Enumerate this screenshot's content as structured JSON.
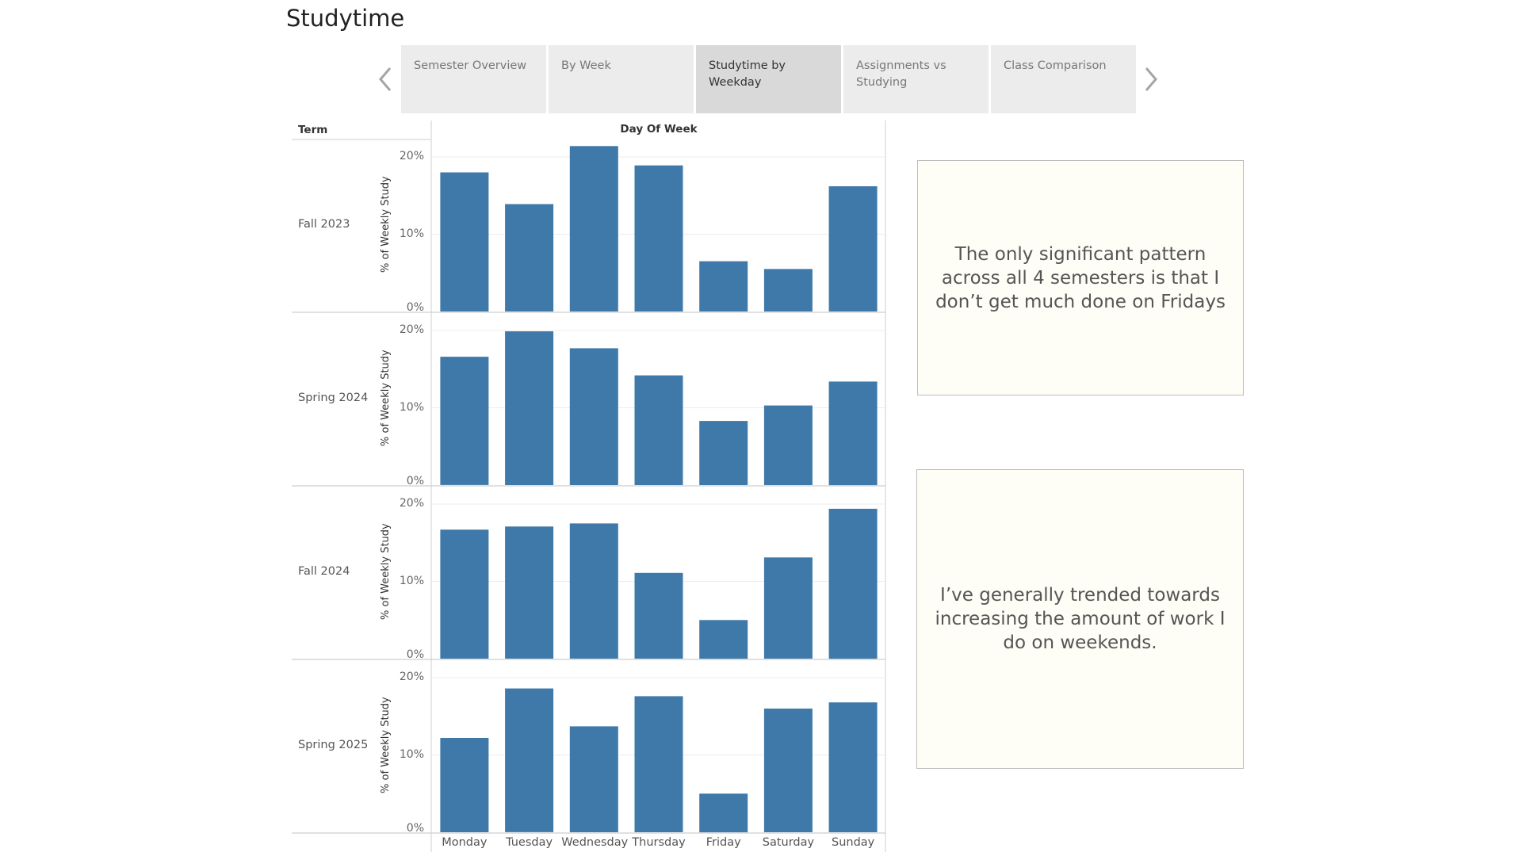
{
  "page": {
    "title": "Studytime"
  },
  "tabs": [
    {
      "label": "Semester Overview",
      "active": false
    },
    {
      "label": "By Week",
      "active": false
    },
    {
      "label": "Studytime by Weekday",
      "active": true
    },
    {
      "label": "Assignments vs Studying",
      "active": false
    },
    {
      "label": "Class Comparison",
      "active": false
    }
  ],
  "nav": {
    "prev_icon": "chevron-left-icon",
    "next_icon": "chevron-right-icon"
  },
  "chart_headers": {
    "row_header": "Term",
    "column_header": "Day Of Week"
  },
  "colors": {
    "bar": "#3f79a9",
    "grid": "#ececec",
    "axis": "#cfcfcf"
  },
  "chart_data": {
    "type": "bar",
    "ylabel": "% of Weekly Study",
    "ylim": [
      0,
      0.2
    ],
    "yticks": [
      "0%",
      "10%",
      "20%"
    ],
    "categories": [
      "Monday",
      "Tuesday",
      "Wednesday",
      "Thursday",
      "Friday",
      "Saturday",
      "Sunday"
    ],
    "panels": [
      {
        "term": "Fall 2023",
        "values": [
          0.18,
          0.139,
          0.214,
          0.189,
          0.065,
          0.055,
          0.162
        ]
      },
      {
        "term": "Spring 2024",
        "values": [
          0.166,
          0.199,
          0.177,
          0.142,
          0.083,
          0.103,
          0.134
        ]
      },
      {
        "term": "Fall 2024",
        "values": [
          0.167,
          0.171,
          0.175,
          0.111,
          0.05,
          0.131,
          0.194
        ]
      },
      {
        "term": "Spring 2025",
        "values": [
          0.122,
          0.186,
          0.137,
          0.176,
          0.05,
          0.16,
          0.168
        ]
      }
    ]
  },
  "notes": [
    {
      "text": "The only significant pattern across all 4 semesters is that I don’t get much done on Fridays"
    },
    {
      "text": "I’ve generally trended towards increasing the amount of work I do on weekends."
    }
  ]
}
